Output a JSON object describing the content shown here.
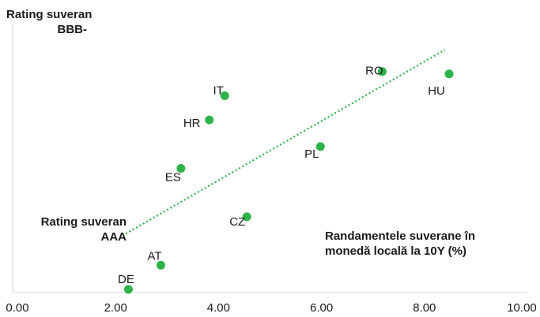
{
  "chart_data": {
    "type": "scatter",
    "y_axis_labels": {
      "top": [
        "Rating suveran",
        "BBB-"
      ],
      "bottom": [
        "Rating suveran",
        "AAA"
      ]
    },
    "xlabel": [
      "Randamentele suverane în",
      "monedă locală la 10Y (%)"
    ],
    "xlim": [
      0,
      10
    ],
    "xticks": [
      "0.00",
      "2.00",
      "4.00",
      "6.00",
      "8.00",
      "10.00"
    ],
    "ylim": [
      0,
      10
    ],
    "grid": false,
    "legend": "none",
    "point_color": "#2db34a",
    "trendline": {
      "style": "dotted",
      "color": "#2db34a",
      "x": [
        2.2,
        8.4
      ],
      "y": [
        2.3,
        9.9
      ]
    },
    "points": [
      {
        "label": "DE",
        "x": 2.25,
        "y": 0.0
      },
      {
        "label": "AT",
        "x": 2.88,
        "y": 1.0
      },
      {
        "label": "CZ",
        "x": 4.55,
        "y": 3.0
      },
      {
        "label": "ES",
        "x": 3.27,
        "y": 5.0
      },
      {
        "label": "HR",
        "x": 3.82,
        "y": 7.0
      },
      {
        "label": "IT",
        "x": 4.12,
        "y": 8.0
      },
      {
        "label": "PL",
        "x": 5.98,
        "y": 5.9
      },
      {
        "label": "RO",
        "x": 7.18,
        "y": 9.0
      },
      {
        "label": "HU",
        "x": 8.48,
        "y": 8.9
      }
    ]
  }
}
